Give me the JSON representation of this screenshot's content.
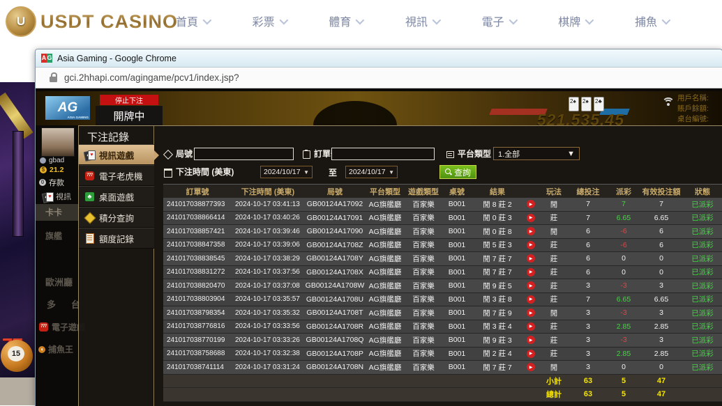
{
  "site_header": {
    "logo_badge": "U",
    "logo_text": "USDT CASINO",
    "nav": [
      {
        "label": "首頁"
      },
      {
        "label": "彩票"
      },
      {
        "label": "體育"
      },
      {
        "label": "視訊"
      },
      {
        "label": "電子"
      },
      {
        "label": "棋牌"
      },
      {
        "label": "捕魚"
      }
    ]
  },
  "chrome": {
    "favicon_a": "A",
    "favicon_g": "G",
    "title": "Asia Gaming - Google Chrome",
    "url": "gci.2hhapi.com/agingame/pcv1/index.jsp?"
  },
  "game_header": {
    "logo": "AG",
    "logo_sub": "ASIA GAMING",
    "stop_label": "停止下注",
    "status_label": "開牌中",
    "cards": [
      "2♠",
      "2♠",
      "2♣"
    ],
    "big_number": "521,535.45",
    "hud_labels": [
      "用戶名稱:",
      "賬戶餘額:",
      "桌台編號:"
    ]
  },
  "backdrop": {
    "username": "gbad",
    "balance": "21.2",
    "deposit_label": "存款",
    "video_label": "視訊",
    "ghost_items": [
      "卡卡",
      "旗艦",
      "歐洲廳",
      "多台",
      "電子遊戲",
      "捕魚王"
    ],
    "slot_sevens": "77",
    "ball_number": "15"
  },
  "panel": {
    "title": "下注記錄",
    "sidebar": [
      {
        "label": "視訊遊戲",
        "icon": "video-cards-icon",
        "active": true
      },
      {
        "label": "電子老虎機",
        "icon": "slots-777-icon",
        "active": false
      },
      {
        "label": "桌面遊戲",
        "icon": "table-games-icon",
        "active": false
      },
      {
        "label": "積分查詢",
        "icon": "points-gem-icon",
        "active": false
      },
      {
        "label": "額度記錄",
        "icon": "records-doc-icon",
        "active": false
      }
    ],
    "form": {
      "round_label": "局號",
      "order_label": "訂單號",
      "platform_label": "平台類型",
      "platform_value": "1.全部",
      "time_label": "下注時間 (美東)",
      "date_from": "2024/10/17",
      "to_label": "至",
      "date_to": "2024/10/17",
      "search_label": "查詢"
    },
    "table": {
      "headers": [
        "訂單號",
        "下注時間 (美東)",
        "局號",
        "平台類型",
        "遊戲類型",
        "桌號",
        "結果",
        "",
        "玩法",
        "總投注",
        "派彩",
        "有效投注額",
        "狀態"
      ],
      "rows": [
        [
          "241017038877393",
          "2024-10-17 03:41:13",
          "GB00124A17092",
          "AG旗艦廳",
          "百家樂",
          "B001",
          "閒 8 莊 2",
          "閒",
          "7",
          "7",
          "7",
          "已派彩"
        ],
        [
          "241017038866414",
          "2024-10-17 03:40:26",
          "GB00124A17091",
          "AG旗艦廳",
          "百家樂",
          "B001",
          "閒 0 莊 3",
          "莊",
          "7",
          "6.65",
          "6.65",
          "已派彩"
        ],
        [
          "241017038857421",
          "2024-10-17 03:39:46",
          "GB00124A17090",
          "AG旗艦廳",
          "百家樂",
          "B001",
          "閒 0 莊 8",
          "閒",
          "6",
          "-6",
          "6",
          "已派彩"
        ],
        [
          "241017038847358",
          "2024-10-17 03:39:06",
          "GB00124A1708Z",
          "AG旗艦廳",
          "百家樂",
          "B001",
          "閒 5 莊 3",
          "莊",
          "6",
          "-6",
          "6",
          "已派彩"
        ],
        [
          "241017038838545",
          "2024-10-17 03:38:29",
          "GB00124A1708Y",
          "AG旗艦廳",
          "百家樂",
          "B001",
          "閒 7 莊 7",
          "莊",
          "6",
          "0",
          "0",
          "已派彩"
        ],
        [
          "241017038831272",
          "2024-10-17 03:37:56",
          "GB00124A1708X",
          "AG旗艦廳",
          "百家樂",
          "B001",
          "閒 7 莊 7",
          "莊",
          "6",
          "0",
          "0",
          "已派彩"
        ],
        [
          "241017038820470",
          "2024-10-17 03:37:08",
          "GB00124A1708W",
          "AG旗艦廳",
          "百家樂",
          "B001",
          "閒 9 莊 5",
          "莊",
          "3",
          "-3",
          "3",
          "已派彩"
        ],
        [
          "241017038803904",
          "2024-10-17 03:35:57",
          "GB00124A1708U",
          "AG旗艦廳",
          "百家樂",
          "B001",
          "閒 3 莊 8",
          "莊",
          "7",
          "6.65",
          "6.65",
          "已派彩"
        ],
        [
          "241017038798354",
          "2024-10-17 03:35:32",
          "GB00124A1708T",
          "AG旗艦廳",
          "百家樂",
          "B001",
          "閒 7 莊 9",
          "閒",
          "3",
          "-3",
          "3",
          "已派彩"
        ],
        [
          "241017038776816",
          "2024-10-17 03:33:56",
          "GB00124A1708R",
          "AG旗艦廳",
          "百家樂",
          "B001",
          "閒 3 莊 4",
          "莊",
          "3",
          "2.85",
          "2.85",
          "已派彩"
        ],
        [
          "241017038770199",
          "2024-10-17 03:33:26",
          "GB00124A1708Q",
          "AG旗艦廳",
          "百家樂",
          "B001",
          "閒 9 莊 3",
          "莊",
          "3",
          "-3",
          "3",
          "已派彩"
        ],
        [
          "241017038758688",
          "2024-10-17 03:32:38",
          "GB00124A1708P",
          "AG旗艦廳",
          "百家樂",
          "B001",
          "閒 2 莊 4",
          "莊",
          "3",
          "2.85",
          "2.85",
          "已派彩"
        ],
        [
          "241017038741114",
          "2024-10-17 03:31:24",
          "GB00124A1708N",
          "AG旗艦廳",
          "百家樂",
          "B001",
          "閒 7 莊 7",
          "閒",
          "3",
          "0",
          "0",
          "已派彩"
        ]
      ],
      "subtotal": {
        "label": "小計",
        "total_bet": "63",
        "payout": "5",
        "valid_bet": "47"
      },
      "grand_total": {
        "label": "總計",
        "total_bet": "63",
        "payout": "5",
        "valid_bet": "47"
      }
    },
    "colors": {
      "win": "#3ddb3d",
      "loss": "#e04444",
      "totals": "#f5e400",
      "header_text": "#c8aa6a",
      "active_tab": "#c9a470"
    }
  }
}
